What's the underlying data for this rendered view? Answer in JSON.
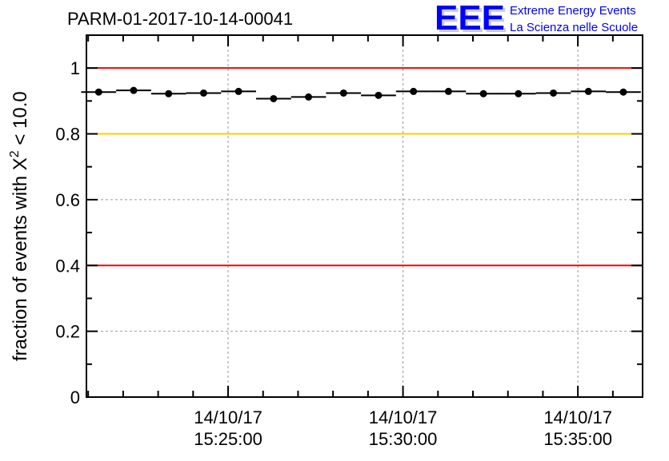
{
  "chart_data": {
    "type": "scatter",
    "title": "PARM-01-2017-10-14-00041",
    "ylabel": "fraction of events with X² < 10.0",
    "ylabel_parts": {
      "main": "fraction of events with X",
      "sup": "2",
      "rest": " < 10.0"
    },
    "xlabel": "",
    "ylim": [
      0,
      1.1
    ],
    "xlim_minutes": [
      -4.05,
      11.85
    ],
    "x_reference": "14/10/17 15:25:00",
    "yticks": [
      "0",
      "0.2",
      "0.4",
      "0.6",
      "0.8",
      "1"
    ],
    "ytick_values": [
      0,
      0.2,
      0.4,
      0.6,
      0.8,
      1.0
    ],
    "xticks": [
      {
        "minutes": 0,
        "date": "14/10/17",
        "time": "15:25:00"
      },
      {
        "minutes": 5,
        "date": "14/10/17",
        "time": "15:30:00"
      },
      {
        "minutes": 10,
        "date": "14/10/17",
        "time": "15:35:00"
      }
    ],
    "bin_width_minutes": 1,
    "x_minutes": [
      -3.7,
      -2.7,
      -1.7,
      -0.7,
      0.3,
      1.3,
      2.3,
      3.3,
      4.3,
      5.3,
      6.3,
      7.3,
      8.3,
      9.3,
      10.3,
      11.3
    ],
    "values": [
      0.927,
      0.932,
      0.922,
      0.924,
      0.929,
      0.907,
      0.912,
      0.924,
      0.917,
      0.929,
      0.929,
      0.922,
      0.922,
      0.924,
      0.929,
      0.927
    ],
    "reference_lines": [
      {
        "y": 1.0,
        "color": "#ff0000"
      },
      {
        "y": 0.8,
        "color": "#ffcc00"
      },
      {
        "y": 0.4,
        "color": "#ff0000"
      }
    ],
    "grid": true
  },
  "logo": {
    "letters": "EEE",
    "line1": "Extreme Energy Events",
    "line2": "La Scienza nelle Scuole",
    "color": "#0000ff"
  }
}
